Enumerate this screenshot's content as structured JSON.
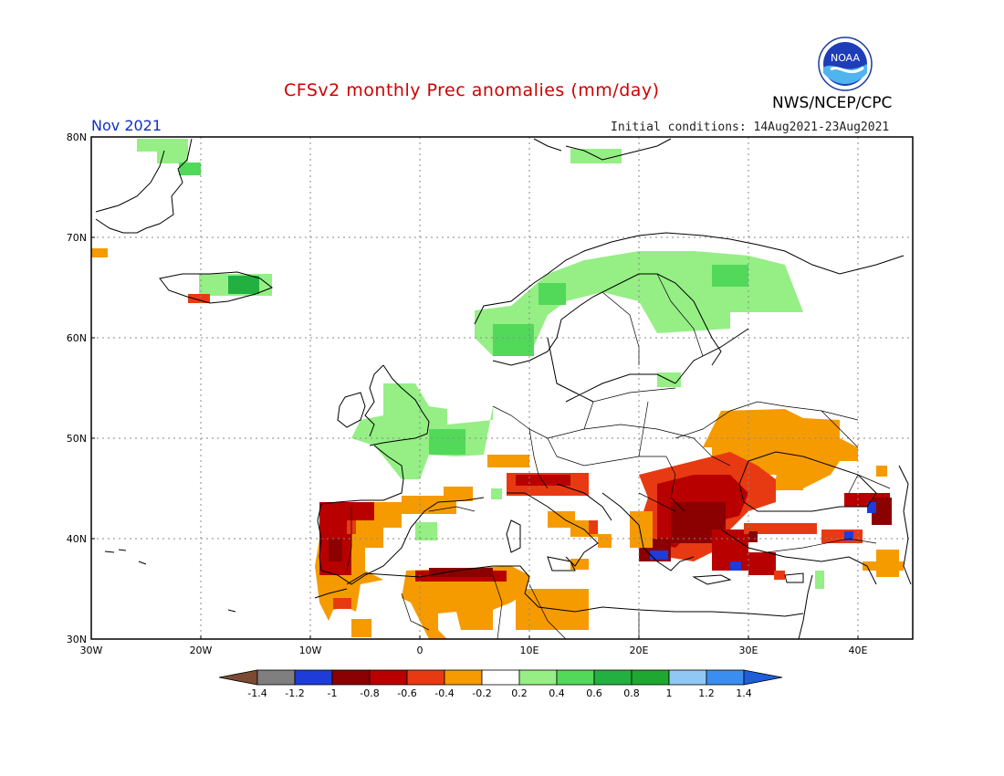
{
  "header": {
    "title": "CFSv2 monthly Prec anomalies (mm/day)",
    "agency": "NWS/NCEP/CPC",
    "month": "Nov 2021",
    "initial_conditions": "Initial conditions: 14Aug2021-23Aug2021",
    "logo_text": "NOAA"
  },
  "axes": {
    "lat_labels": [
      "80N",
      "70N",
      "60N",
      "50N",
      "40N",
      "30N"
    ],
    "lon_labels": [
      "30W",
      "20W",
      "10W",
      "0",
      "10E",
      "20E",
      "30E",
      "40E"
    ]
  },
  "colorbar": {
    "tick_labels": [
      "-1.4",
      "-1.2",
      "-1",
      "-0.8",
      "-0.6",
      "-0.4",
      "-0.2",
      "0.2",
      "0.4",
      "0.6",
      "0.8",
      "1",
      "1.2",
      "1.4"
    ],
    "colors": [
      "#7a4a33",
      "#7f7f7f",
      "#1e3cd8",
      "#8b0000",
      "#b80000",
      "#e83a12",
      "#f59b00",
      "#ffffff",
      "#95ef85",
      "#52d95a",
      "#23b040",
      "#1ea82f",
      "#90c8f5",
      "#3b8ef0",
      "#1e5ed8"
    ]
  },
  "colors": {
    "dry_moderate": "#f59b00",
    "dry_strong": "#e83a12",
    "dry_severe": "#b80000",
    "dry_extreme": "#8b0000",
    "wet_light": "#95ef85",
    "wet_moderate": "#52d95a",
    "wet_strong": "#23b040",
    "wet_negative_anomaly_blue": "#1e3cd8"
  }
}
